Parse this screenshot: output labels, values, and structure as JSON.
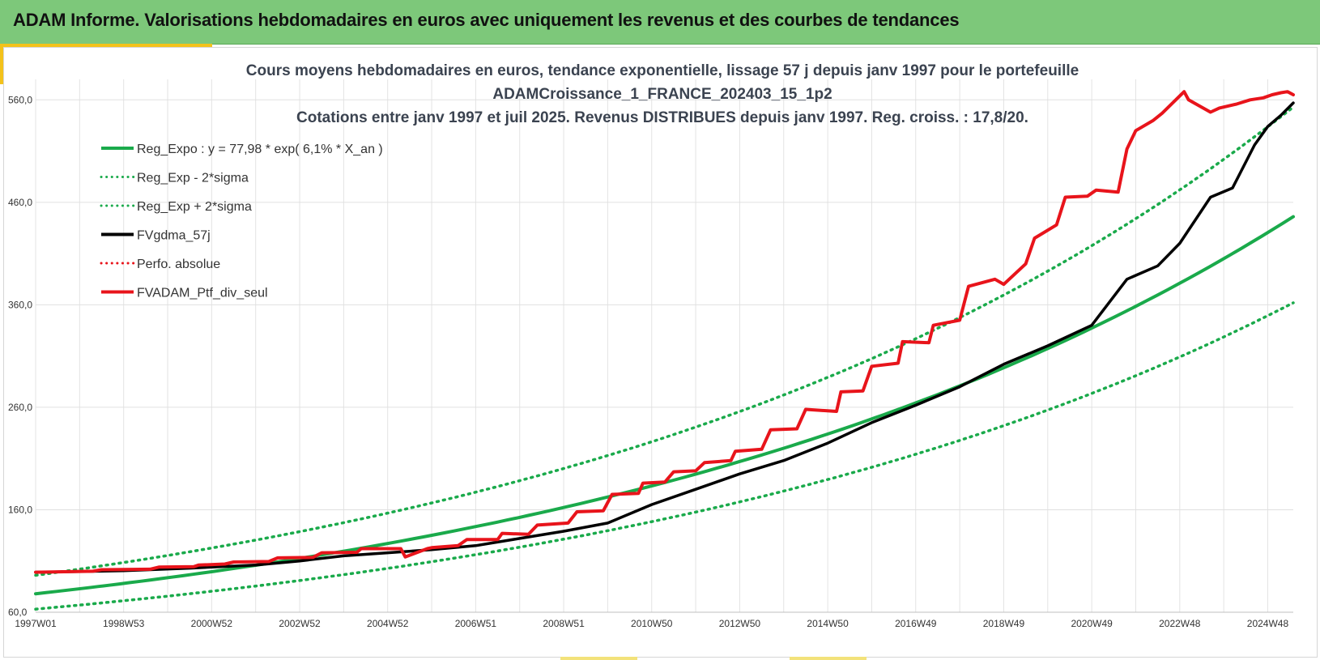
{
  "header": {
    "title": "ADAM Informe. Valorisations hebdomadaires en euros avec uniquement les revenus et des courbes de tendances"
  },
  "colors": {
    "banner": "#7dc87a",
    "accent": "#f3c21b",
    "trend": "#1aaa4b",
    "smooth": "#000000",
    "perf": "#e8141b"
  },
  "chart_data": {
    "type": "line",
    "title": [
      "Cours moyens hebdomadaires  en euros, tendance exponentielle, lissage 57 j depuis janv 1997 pour le portefeuille",
      "ADAMCroissance_1_FRANCE_202403_15_1p2",
      "Cotations  entre janv 1997 et juil 2025. Revenus DISTRIBUES depuis janv 1997. Reg. croiss. : 17,8/20."
    ],
    "xlabel": "",
    "ylabel": "",
    "ylim": [
      60,
      580
    ],
    "xlim": [
      1997.0,
      2025.58
    ],
    "y_ticks": [
      60,
      160,
      260,
      360,
      460,
      560
    ],
    "y_tick_labels": [
      "60,0",
      "160,0",
      "260,0",
      "360,0",
      "460,0",
      "560,0"
    ],
    "x_ticks": [
      1997.0,
      1999.0,
      2001.0,
      2003.0,
      2005.0,
      2007.0,
      2009.0,
      2011.0,
      2013.0,
      2015.0,
      2017.0,
      2019.0,
      2021.0,
      2023.0,
      2025.0
    ],
    "x_tick_labels": [
      "1997W01",
      "1998W53",
      "2000W52",
      "2002W52",
      "2004W52",
      "2006W51",
      "2008W51",
      "2010W50",
      "2012W50",
      "2014W50",
      "2016W49",
      "2018W49",
      "2020W49",
      "2022W48",
      "2024W48"
    ],
    "grid": true,
    "legend_position": "top-left",
    "legend": [
      {
        "label": "Reg_Expo : y = 77,98 * exp( 6,1% *  X_an )",
        "style": "solid",
        "color": "#1aaa4b"
      },
      {
        "label": "Reg_Exp - 2*sigma",
        "style": "dotted",
        "color": "#1aaa4b"
      },
      {
        "label": "Reg_Exp + 2*sigma",
        "style": "dotted",
        "color": "#1aaa4b"
      },
      {
        "label": "FVgdma_57j",
        "style": "solid",
        "color": "#000000"
      },
      {
        "label": "Perfo. absolue",
        "style": "dotted",
        "color": "#e8141b"
      },
      {
        "label": "FVADAM_Ptf_div_seul",
        "style": "solid",
        "color": "#e8141b"
      }
    ],
    "regression": {
      "a": 77.98,
      "b": 0.061,
      "x0": 1997.0
    },
    "series": [
      {
        "name": "Reg_Expo : y = 77,98 * exp( 6,1% *  X_an )",
        "x": [
          1997.0,
          1999.0,
          2001.0,
          2003.0,
          2005.0,
          2007.0,
          2009.0,
          2011.0,
          2013.0,
          2015.0,
          2017.0,
          2019.0,
          2021.0,
          2023.0,
          2025.58
        ],
        "y": [
          78.0,
          88.5,
          99.7,
          112.6,
          127.0,
          143.4,
          161.8,
          182.6,
          206.2,
          232.8,
          262.8,
          296.6,
          334.8,
          377.9,
          446.0
        ]
      },
      {
        "name": "Reg_Exp - 2*sigma",
        "x": [
          1997.0,
          1999.0,
          2001.0,
          2003.0,
          2005.0,
          2007.0,
          2009.0,
          2011.0,
          2013.0,
          2015.0,
          2017.0,
          2019.0,
          2021.0,
          2023.0,
          2025.58
        ],
        "y": [
          63.0,
          71.5,
          80.7,
          91.0,
          102.7,
          115.9,
          130.8,
          147.7,
          166.7,
          188.2,
          212.4,
          239.8,
          270.6,
          305.4,
          362.0
        ]
      },
      {
        "name": "Reg_Exp + 2*sigma",
        "x": [
          1997.0,
          1999.0,
          2001.0,
          2003.0,
          2005.0,
          2007.0,
          2009.0,
          2011.0,
          2013.0,
          2015.0,
          2017.0,
          2019.0,
          2021.0,
          2023.0,
          2025.58
        ],
        "y": [
          96.0,
          109.0,
          123.0,
          138.6,
          156.5,
          176.6,
          199.3,
          225.0,
          254.0,
          286.7,
          323.6,
          365.3,
          412.3,
          465.4,
          553.0
        ]
      },
      {
        "name": "FVgdma_57j",
        "x": [
          1997.0,
          1999.0,
          2000.5,
          2002.0,
          2003.0,
          2004.0,
          2005.0,
          2006.0,
          2007.0,
          2008.0,
          2009.0,
          2010.0,
          2011.0,
          2012.0,
          2013.0,
          2014.0,
          2015.0,
          2016.0,
          2017.0,
          2018.0,
          2019.0,
          2020.0,
          2021.0,
          2021.8,
          2022.5,
          2023.0,
          2023.7,
          2024.2,
          2024.7,
          2025.0,
          2025.3,
          2025.58
        ],
        "y": [
          99.0,
          100.5,
          103.0,
          106.0,
          110.0,
          115.0,
          118.0,
          121.0,
          125.0,
          132.0,
          139.0,
          147.0,
          165.0,
          180.0,
          195.0,
          208.0,
          225.0,
          245.0,
          262.0,
          280.0,
          302.0,
          320.0,
          340.0,
          385.0,
          398.0,
          420.0,
          465.0,
          474.0,
          516.0,
          534.0,
          545.0,
          557.0
        ]
      },
      {
        "name": "FVADAM_Ptf_div_seul",
        "x": [
          1997.0,
          1998.3,
          1998.5,
          1999.6,
          1999.8,
          2000.6,
          2000.7,
          2001.3,
          2001.5,
          2002.3,
          2002.5,
          2003.3,
          2003.5,
          2004.3,
          2004.4,
          2005.3,
          2005.4,
          2005.9,
          2006.0,
          2006.6,
          2006.8,
          2007.5,
          2007.6,
          2008.2,
          2008.4,
          2009.1,
          2009.3,
          2009.9,
          2010.1,
          2010.7,
          2010.8,
          2011.3,
          2011.5,
          2012.0,
          2012.2,
          2012.8,
          2012.9,
          2013.5,
          2013.7,
          2014.3,
          2014.5,
          2015.2,
          2015.3,
          2015.8,
          2016.0,
          2016.6,
          2016.7,
          2017.3,
          2017.4,
          2018.0,
          2018.2,
          2018.8,
          2019.0,
          2019.5,
          2019.7,
          2020.2,
          2020.4,
          2020.9,
          2021.1,
          2021.6,
          2021.8,
          2022.0,
          2022.4,
          2022.6,
          2023.1,
          2023.2,
          2023.7,
          2023.9,
          2024.3,
          2024.6,
          2024.9,
          2025.1,
          2025.3,
          2025.45,
          2025.58
        ],
        "y": [
          99.0,
          100.0,
          101.5,
          102.0,
          104.0,
          104.5,
          106.0,
          107.0,
          109.0,
          109.5,
          113.0,
          113.5,
          118.0,
          118.5,
          122.0,
          122.0,
          114.0,
          122.0,
          123.0,
          125.0,
          131.0,
          131.0,
          137.0,
          136.0,
          145.0,
          147.0,
          158.0,
          159.0,
          175.0,
          176.0,
          186.0,
          187.0,
          197.0,
          198.0,
          206.0,
          208.0,
          217.0,
          219.0,
          238.0,
          239.0,
          258.0,
          256.0,
          275.0,
          276.0,
          300.0,
          303.0,
          324.0,
          323.0,
          340.0,
          345.0,
          378.0,
          385.0,
          380.0,
          400.0,
          425.0,
          438.0,
          465.0,
          466.0,
          472.0,
          470.0,
          512.0,
          530.0,
          540.0,
          547.0,
          568.0,
          560.0,
          548.0,
          552.0,
          556.0,
          560.0,
          562.0,
          565.0,
          567.0,
          568.0,
          565.0
        ]
      }
    ]
  }
}
